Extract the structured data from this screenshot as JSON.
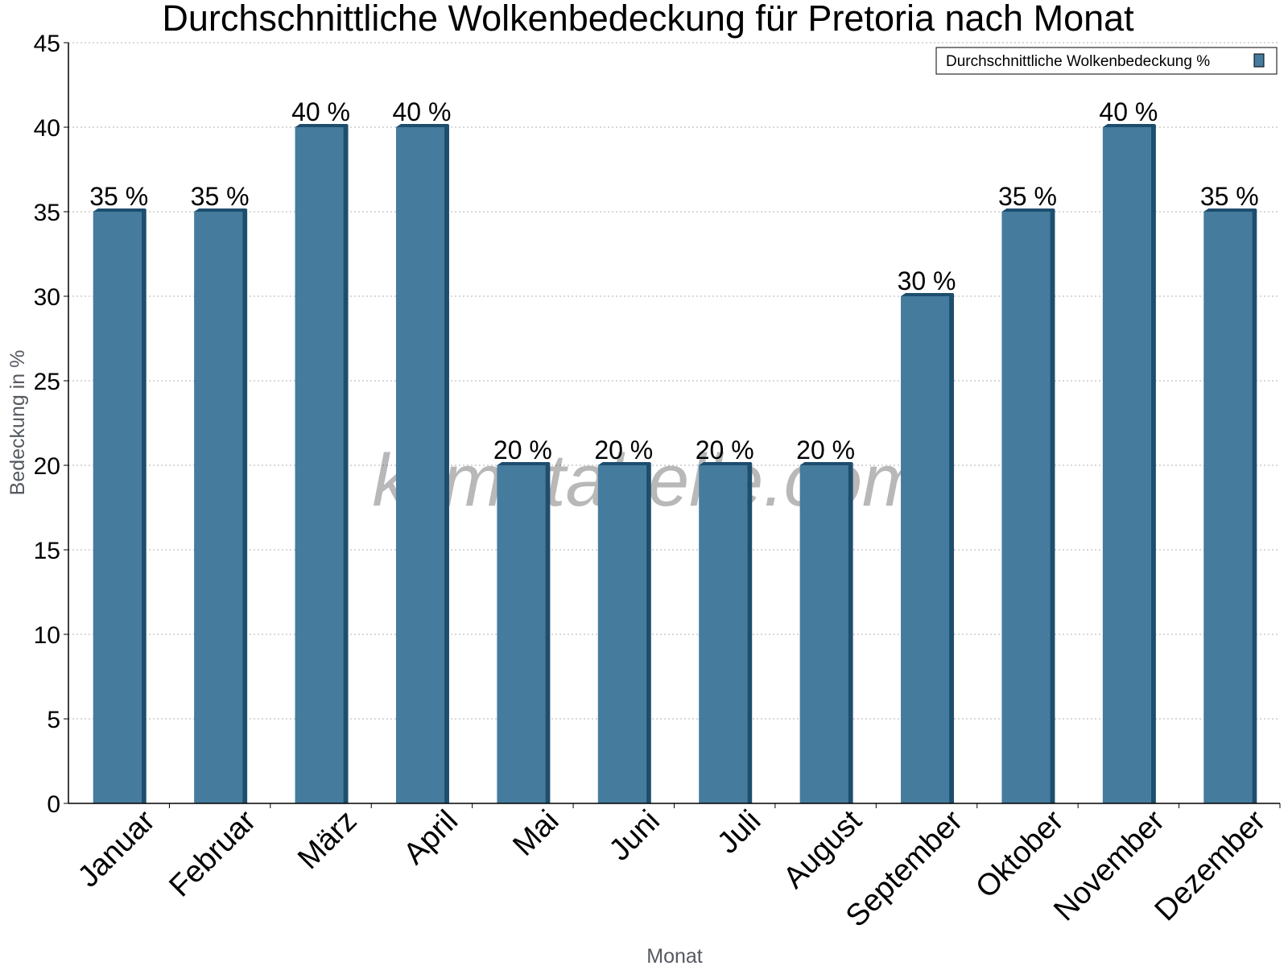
{
  "chart_data": {
    "type": "bar",
    "title": "Durchschnittliche Wolkenbedeckung für Pretoria nach Monat",
    "xlabel": "Monat",
    "ylabel": "Bedeckung in %",
    "categories": [
      "Januar",
      "Februar",
      "März",
      "April",
      "Mai",
      "Juni",
      "Juli",
      "August",
      "September",
      "Oktober",
      "November",
      "Dezember"
    ],
    "series": [
      {
        "name": "Durchschnittliche Wolkenbedeckung %",
        "values": [
          35,
          35,
          40,
          40,
          20,
          20,
          20,
          20,
          30,
          35,
          40,
          35
        ],
        "data_labels": [
          "35 %",
          "35 %",
          "40 %",
          "40 %",
          "20 %",
          "20 %",
          "20 %",
          "20 %",
          "30 %",
          "35 %",
          "40 %",
          "35 %"
        ],
        "color": "#457b9d",
        "shade_color": "#1d4e6e"
      }
    ],
    "ylim": [
      0,
      45
    ],
    "yticks": [
      0,
      5,
      10,
      15,
      20,
      25,
      30,
      35,
      40,
      45
    ],
    "grid": true,
    "legend_position": "top-right"
  },
  "watermark": "klimatabelle.com"
}
